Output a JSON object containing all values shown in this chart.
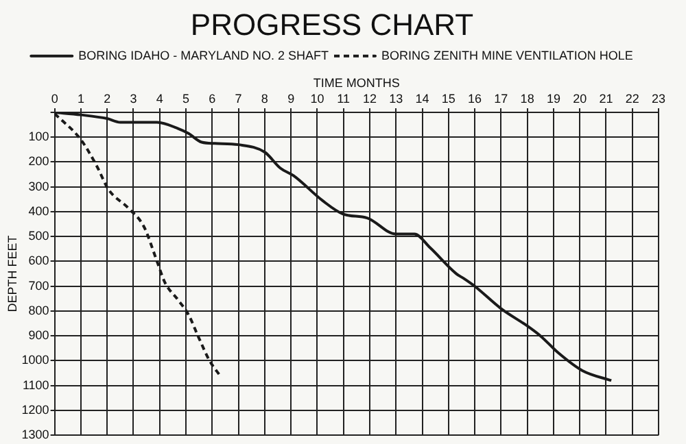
{
  "chart_data": {
    "type": "line",
    "title": "PROGRESS CHART",
    "xlabel": "TIME MONTHS",
    "ylabel": "DEPTH FEET",
    "xlim": [
      0,
      23
    ],
    "xticks": [
      0,
      1,
      2,
      3,
      4,
      5,
      6,
      7,
      8,
      9,
      10,
      11,
      12,
      13,
      14,
      15,
      16,
      17,
      18,
      19,
      20,
      21,
      22,
      23
    ],
    "ylim": [
      1300,
      0
    ],
    "yticks": [
      {
        "value": 0,
        "label": null
      },
      100,
      200,
      300,
      400,
      500,
      600,
      700,
      800,
      900,
      1000,
      1100,
      1200,
      1300
    ],
    "grid": true,
    "legend": "top",
    "marker": "none",
    "series": [
      {
        "name": "BORING IDAHO - MARYLAND NO. 2 SHAFT",
        "color": "#1a1a1a",
        "line_style": "solid",
        "x": [
          0,
          1,
          2,
          2.5,
          3,
          3.9,
          4.7,
          5.1,
          5.6,
          6.1,
          7,
          8,
          8.6,
          9.1,
          10.2,
          11,
          11.9,
          13,
          13.7,
          14.3,
          15.3,
          15.6,
          16,
          17,
          18,
          18.5,
          19.2,
          20.1,
          21.2
        ],
        "values": [
          0,
          10,
          25,
          40,
          40,
          40,
          65,
          85,
          120,
          125,
          130,
          160,
          225,
          255,
          355,
          410,
          425,
          490,
          490,
          545,
          650,
          670,
          700,
          790,
          860,
          900,
          970,
          1040,
          1080
        ]
      },
      {
        "name": "BORING ZENITH MINE VENTILATION HOLE",
        "color": "#1a1a1a",
        "line_style": "dashed",
        "x": [
          0,
          1,
          1.6,
          2.05,
          2.8,
          3.4,
          3.9,
          4.2,
          4.7,
          5.1,
          5.5,
          5.9,
          6.3
        ],
        "values": [
          5,
          110,
          215,
          310,
          385,
          460,
          600,
          685,
          755,
          815,
          910,
          1000,
          1060
        ]
      }
    ]
  }
}
